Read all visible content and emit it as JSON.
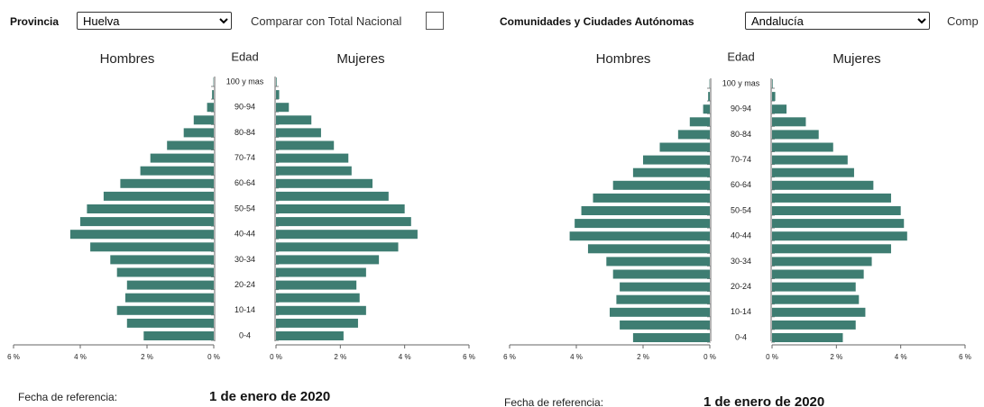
{
  "controls": [
    {
      "label": "Provincia",
      "selected": "Huelva",
      "compare": "Comparar con Total Nacional",
      "ref_label": "Fecha de referencia:",
      "ref_date": "1 de enero de 2020"
    },
    {
      "label": "Comunidades y Ciudades Autónomas",
      "selected": "Andalucía",
      "compare": "Comp",
      "ref_label": "Fecha de referencia:",
      "ref_date": "1 de enero de 2020"
    }
  ],
  "chart_data": [
    {
      "type": "pyramid",
      "y_label": "Edad",
      "categories": [
        "0-4",
        null,
        "10-14",
        null,
        "20-24",
        null,
        "30-34",
        null,
        "40-44",
        null,
        "50-54",
        null,
        "60-64",
        null,
        "70-74",
        null,
        "80-84",
        null,
        "90-94",
        null,
        "100 y mas"
      ],
      "series": [
        {
          "name": "Hombres",
          "color": "#3e7d72",
          "values": [
            2.1,
            2.6,
            2.9,
            2.65,
            2.6,
            2.9,
            3.1,
            3.7,
            4.3,
            4.0,
            3.8,
            3.3,
            2.8,
            2.2,
            1.9,
            1.4,
            0.9,
            0.6,
            0.2,
            0.05,
            0.01
          ]
        },
        {
          "name": "Mujeres",
          "color": "#3e7d72",
          "values": [
            2.1,
            2.55,
            2.8,
            2.6,
            2.5,
            2.8,
            3.2,
            3.8,
            4.4,
            4.2,
            4.0,
            3.5,
            3.0,
            2.35,
            2.25,
            1.8,
            1.4,
            1.1,
            0.4,
            0.1,
            0.02
          ]
        }
      ],
      "xlim": [
        0,
        6
      ],
      "xticks": [
        {
          "value": 0,
          "label": "0 %"
        },
        {
          "value": 2,
          "label": "2 %"
        },
        {
          "value": 4,
          "label": "4 %"
        },
        {
          "value": 6,
          "label": "6 %"
        }
      ]
    },
    {
      "type": "pyramid",
      "y_label": "Edad",
      "categories": [
        "0-4",
        null,
        "10-14",
        null,
        "20-24",
        null,
        "30-34",
        null,
        "40-44",
        null,
        "50-54",
        null,
        "60-64",
        null,
        "70-74",
        null,
        "80-84",
        null,
        "90-94",
        null,
        "100 y mas"
      ],
      "series": [
        {
          "name": "Hombres",
          "color": "#3e7d72",
          "values": [
            2.3,
            2.7,
            3.0,
            2.8,
            2.7,
            2.9,
            3.1,
            3.65,
            4.2,
            4.05,
            3.85,
            3.5,
            2.9,
            2.3,
            2.0,
            1.5,
            0.95,
            0.6,
            0.2,
            0.05,
            0.01
          ]
        },
        {
          "name": "Mujeres",
          "color": "#3e7d72",
          "values": [
            2.2,
            2.6,
            2.9,
            2.7,
            2.6,
            2.85,
            3.1,
            3.7,
            4.2,
            4.1,
            4.0,
            3.7,
            3.15,
            2.55,
            2.35,
            1.9,
            1.45,
            1.05,
            0.45,
            0.1,
            0.02
          ]
        }
      ],
      "xlim": [
        0,
        6
      ],
      "xticks": [
        {
          "value": 0,
          "label": "0 %"
        },
        {
          "value": 2,
          "label": "2 %"
        },
        {
          "value": 4,
          "label": "4 %"
        },
        {
          "value": 6,
          "label": "6 %"
        }
      ]
    }
  ]
}
